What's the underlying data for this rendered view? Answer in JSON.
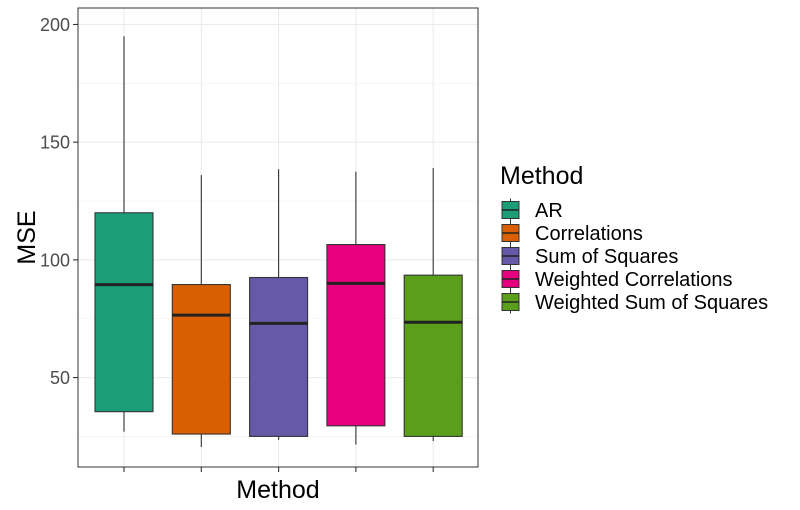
{
  "chart_data": {
    "type": "boxplot",
    "title": "",
    "xlabel": "Method",
    "ylabel": "MSE",
    "ylim": [
      12,
      207
    ],
    "yticks": [
      50,
      100,
      150,
      200
    ],
    "xticks_labeled": false,
    "grid": true,
    "legend": {
      "title": "Method",
      "position": "right",
      "entries": [
        "AR",
        "Correlations",
        "Sum of Squares",
        "Weighted Correlations",
        "Weighted Sum of Squares"
      ]
    },
    "series": [
      {
        "name": "AR",
        "color": "#1B9E77",
        "min": 27,
        "q1": 35.5,
        "median": 89.5,
        "q3": 120,
        "max": 195
      },
      {
        "name": "Correlations",
        "color": "#D95F02",
        "min": 20.5,
        "q1": 26,
        "median": 76.5,
        "q3": 89.5,
        "max": 136
      },
      {
        "name": "Sum of Squares",
        "color": "#6559A8",
        "min": 23.5,
        "q1": 25,
        "median": 73,
        "q3": 92.5,
        "max": 138.5
      },
      {
        "name": "Weighted Correlations",
        "color": "#E7007D",
        "min": 21.5,
        "q1": 29.5,
        "median": 90,
        "q3": 106.5,
        "max": 137.5
      },
      {
        "name": "Weighted Sum of Squares",
        "color": "#5A9E1B",
        "min": 23,
        "q1": 25,
        "median": 73.5,
        "q3": 93.5,
        "max": 139
      }
    ]
  }
}
